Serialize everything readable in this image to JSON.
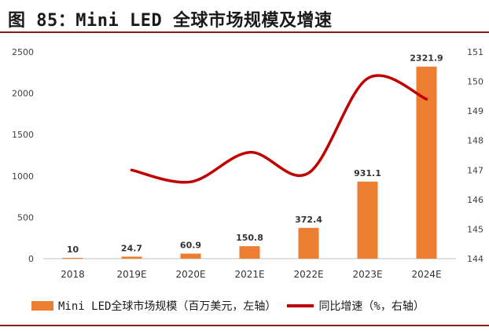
{
  "title": "图 85：Mini LED 全球市场规模及增速",
  "chart_data": {
    "type": "bar+line",
    "categories": [
      "2018",
      "2019E",
      "2020E",
      "2021E",
      "2022E",
      "2023E",
      "2024E"
    ],
    "series": [
      {
        "name": "Mini LED全球市场规模（百万美元，左轴）",
        "type": "bar",
        "axis": "left",
        "color": "#ed7d31",
        "values": [
          10,
          24.7,
          60.9,
          150.8,
          372.4,
          931.1,
          2321.9
        ],
        "labels": [
          "10",
          "24.7",
          "60.9",
          "150.8",
          "372.4",
          "931.1",
          "2321.9"
        ]
      },
      {
        "name": "同比增速（%，右轴）",
        "type": "line",
        "axis": "right",
        "color": "#c00000",
        "values": [
          null,
          147.0,
          146.6,
          147.6,
          146.9,
          150.1,
          149.4
        ]
      }
    ],
    "left_axis": {
      "min": 0,
      "max": 2500,
      "ticks": [
        "0",
        "500",
        "1000",
        "1500",
        "2000",
        "2500"
      ]
    },
    "right_axis": {
      "min": 144,
      "max": 151,
      "ticks": [
        "144",
        "145",
        "146",
        "147",
        "148",
        "149",
        "150",
        "151"
      ]
    },
    "legend_position": "bottom"
  }
}
